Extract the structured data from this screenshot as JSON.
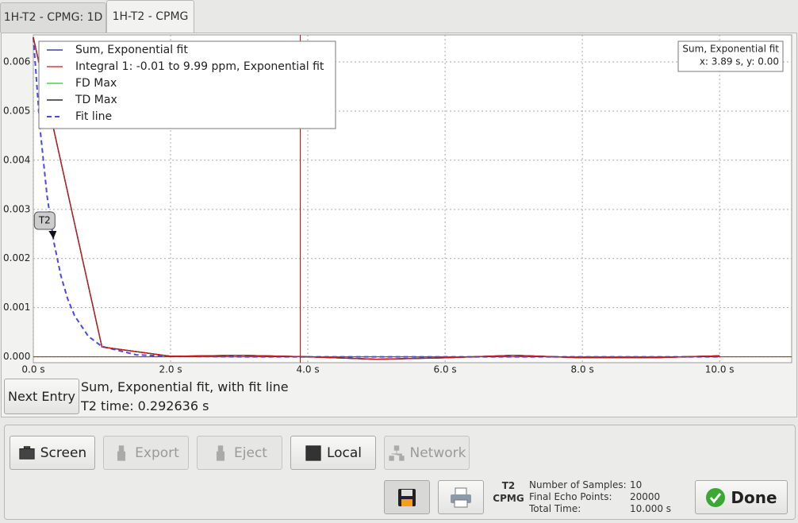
{
  "tabs": [
    "1H-T2 - CPMG: 1D",
    "1H-T2 - CPMG"
  ],
  "active_tab": 1,
  "chart_data": {
    "type": "line",
    "xlim": [
      0,
      11.05
    ],
    "xticks": [
      {
        "value": 0,
        "label": "0.0 s"
      },
      {
        "value": 2,
        "label": "2.0 s"
      },
      {
        "value": 4,
        "label": "4.0 s"
      },
      {
        "value": 6,
        "label": "6.0 s"
      },
      {
        "value": 8,
        "label": "8.0 s"
      },
      {
        "value": 10,
        "label": "10.0 s"
      }
    ],
    "ylim": [
      -0.00012,
      0.00655
    ],
    "yticks": [
      {
        "value": 0,
        "label": "0.000"
      },
      0.001,
      0.002,
      0.003,
      0.004,
      0.005,
      0.006
    ],
    "grid": true,
    "legend": "top-left",
    "series": [
      {
        "name": "Sum, Exponential fit",
        "color": "#1a1a8c",
        "x": [
          0,
          1,
          2,
          3,
          4,
          5,
          6,
          7,
          8,
          9,
          10
        ],
        "values": [
          0.0065,
          0.0002,
          1e-05,
          3e-05,
          0,
          -5e-05,
          -2e-05,
          3e-05,
          -2e-05,
          -2e-05,
          2e-05
        ]
      },
      {
        "name": "Integral 1: -0.01 to 9.99 ppm, Exponential fit",
        "color": "#cc1a1a",
        "x": [
          0,
          1,
          2,
          3,
          4,
          5,
          6,
          7,
          8,
          9,
          10
        ],
        "values": [
          0.0065,
          0.0002,
          1e-05,
          3e-05,
          0,
          -5e-05,
          -2e-05,
          3e-05,
          -2e-05,
          -2e-05,
          2e-05
        ]
      },
      {
        "name": "FD Max",
        "color": "#22cc22",
        "x": [
          0,
          1,
          2,
          3,
          4,
          5,
          6,
          7,
          8,
          9,
          10
        ],
        "values": [
          0.0065,
          0.0002,
          1e-05,
          3e-05,
          0,
          -5e-05,
          -2e-05,
          3e-05,
          -2e-05,
          -2e-05,
          2e-05
        ]
      },
      {
        "name": "TD Max",
        "color": "#000000",
        "x": [
          0,
          1,
          2,
          3,
          4,
          5,
          6,
          7,
          8,
          9,
          10
        ],
        "values": [
          0.0065,
          0.0002,
          1e-05,
          3e-05,
          0,
          -5e-05,
          -2e-05,
          3e-05,
          -2e-05,
          -2e-05,
          2e-05
        ]
      },
      {
        "name": "Fit line",
        "color": "#4a4ae0",
        "dashed": true,
        "x": [
          0,
          0.1,
          0.2,
          0.3,
          0.4,
          0.5,
          0.6,
          0.8,
          1,
          1.5,
          2,
          3,
          4,
          6,
          8,
          10
        ],
        "values": [
          0.0065,
          0.00462,
          0.00328,
          0.00233,
          0.00166,
          0.00118,
          0.00084,
          0.00042,
          0.00021,
          4e-05,
          1e-05,
          0,
          0,
          0,
          0,
          0
        ]
      }
    ],
    "draw_order": [
      4,
      3,
      2,
      0,
      1
    ],
    "cursor": {
      "x": 3.89,
      "y": 0,
      "color": "#b01010"
    },
    "readout": [
      "Sum, Exponential fit",
      "x: 3.89 s, y: 0.00"
    ],
    "marker": {
      "label": "T2",
      "x": 0.2926,
      "y": 0.0024
    }
  },
  "next_entry_button": "Next Entry",
  "result": [
    "Sum, Exponential fit, with fit line",
    "T2 time: 0.292636 s"
  ],
  "buttons": [
    {
      "label": "Screen",
      "enabled": true
    },
    {
      "label": "Export",
      "enabled": false
    },
    {
      "label": "Eject",
      "enabled": false
    },
    {
      "label": "Local",
      "enabled": true
    },
    {
      "label": "Network",
      "enabled": false
    }
  ],
  "summary": {
    "heading": [
      "T2",
      "CPMG"
    ],
    "rows": [
      [
        "Number of Samples:",
        "10"
      ],
      [
        "Final Echo Points:",
        "20000"
      ],
      [
        "Total Time:",
        "10.000 s"
      ]
    ]
  },
  "done_button": "Done"
}
